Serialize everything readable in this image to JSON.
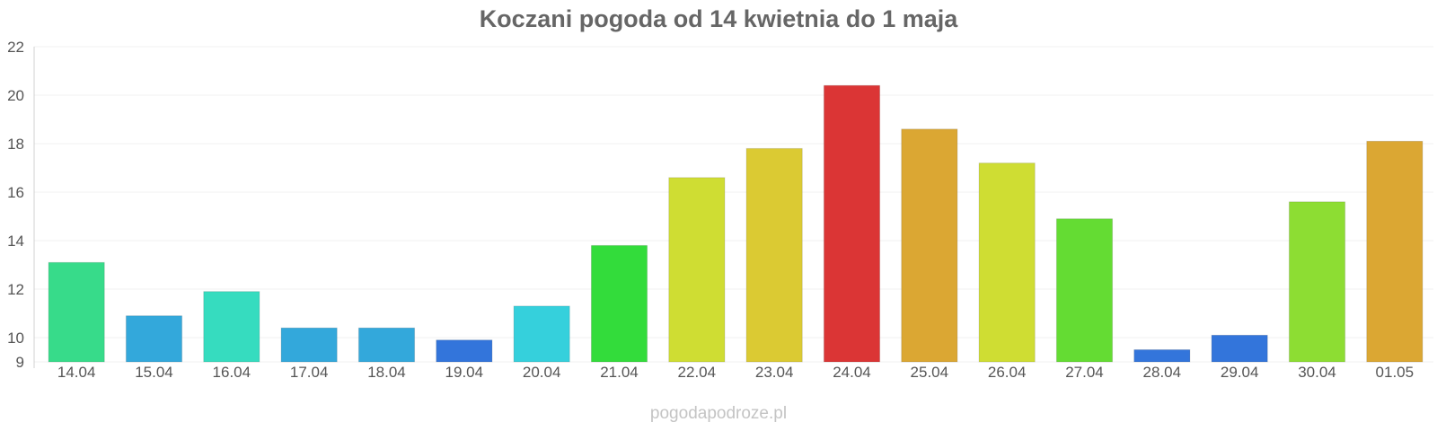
{
  "chart_data": {
    "type": "bar",
    "title": "Koczani pogoda od 14 kwietnia do 1 maja",
    "xlabel": "",
    "ylabel": "",
    "ylim": [
      9,
      22
    ],
    "yticks": [
      9,
      10,
      12,
      14,
      16,
      18,
      20,
      22
    ],
    "grid": true,
    "categories": [
      "14.04",
      "15.04",
      "16.04",
      "17.04",
      "18.04",
      "19.04",
      "20.04",
      "21.04",
      "22.04",
      "23.04",
      "24.04",
      "25.04",
      "26.04",
      "27.04",
      "28.04",
      "29.04",
      "30.04",
      "01.05"
    ],
    "values": [
      13.1,
      10.9,
      11.9,
      10.4,
      10.4,
      9.9,
      11.3,
      13.8,
      16.6,
      17.8,
      20.4,
      18.6,
      17.2,
      14.9,
      9.5,
      10.1,
      15.6,
      18.1
    ],
    "colors": [
      "#37db8a",
      "#33a8db",
      "#36dcbf",
      "#33a8db",
      "#33a8db",
      "#3375db",
      "#35d0dc",
      "#33dc3b",
      "#cfdd33",
      "#dbca33",
      "#db3535",
      "#dba733",
      "#cfdd33",
      "#64dc33",
      "#3375db",
      "#3375db",
      "#8ddd33",
      "#dba733"
    ]
  },
  "footer": {
    "watermark": "pogodapodroze.pl"
  }
}
